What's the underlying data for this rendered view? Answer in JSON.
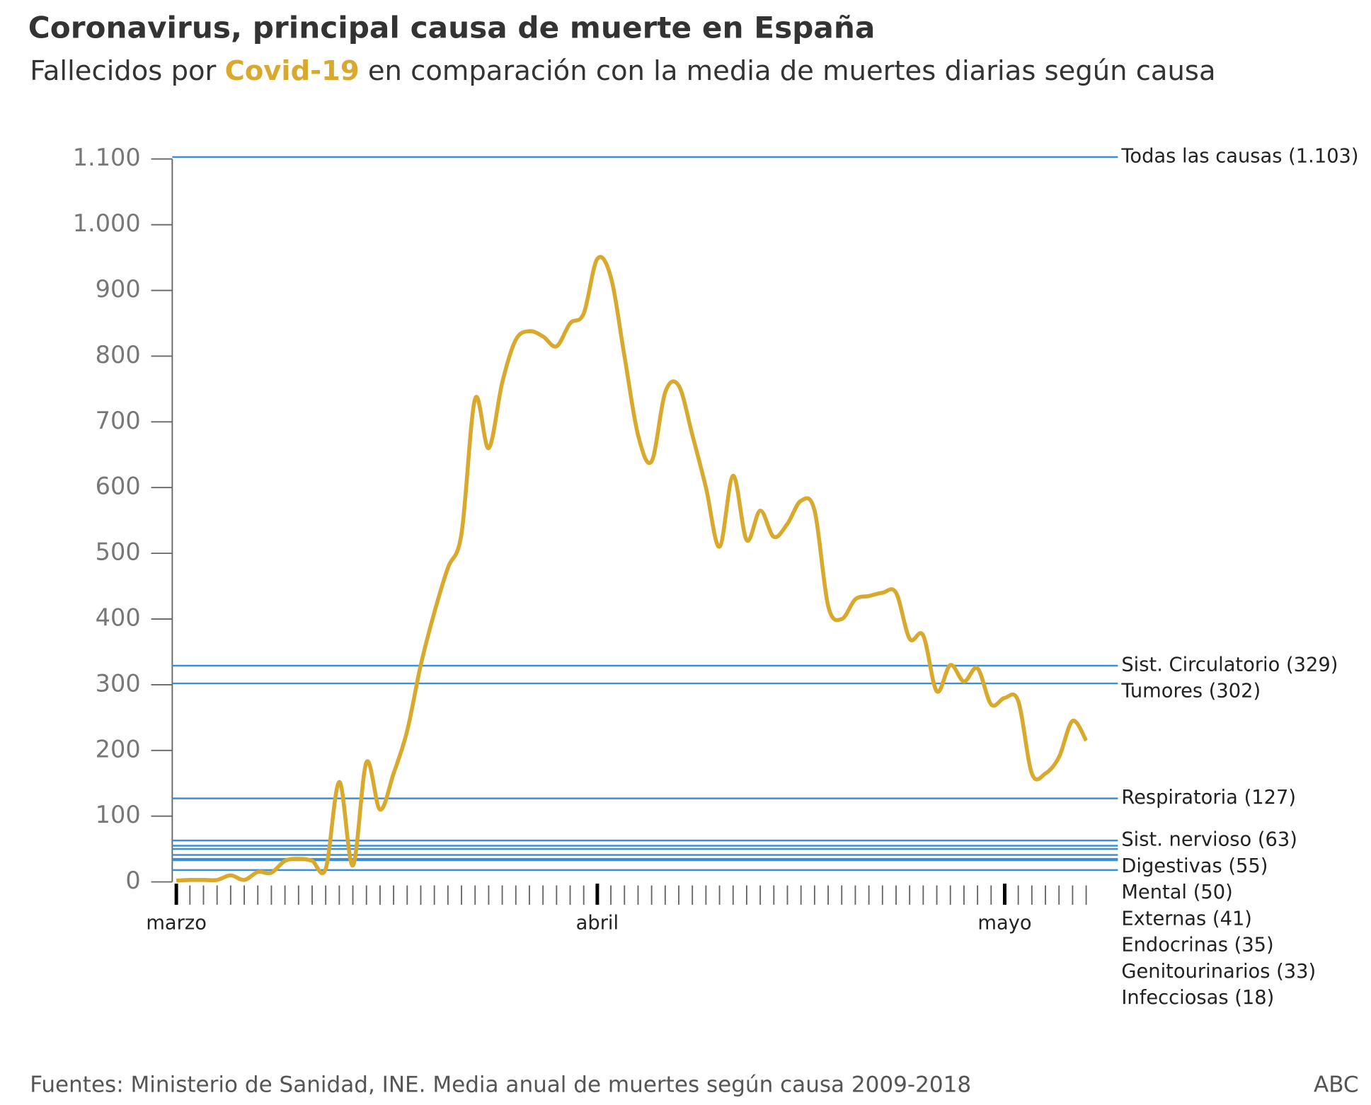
{
  "chart_data": {
    "type": "line",
    "title": "Coronavirus, principal causa de muerte en España",
    "subtitle": {
      "before": "Fallecidos por",
      "highlight": "Covid-19",
      "after": "en comparación con la media de muertes diarias según causa"
    },
    "source": "Fuentes: Ministerio de Sanidad, INE. Media anual de muertes según causa 2009-2018",
    "credit": "ABC",
    "x": [
      0,
      1,
      2,
      3,
      4,
      5,
      6,
      7,
      8,
      9,
      10,
      11,
      12,
      13,
      14,
      15,
      16,
      17,
      18,
      19,
      20,
      21,
      22,
      23,
      24,
      25,
      26,
      27,
      28,
      29,
      30,
      31,
      32,
      33,
      34,
      35,
      36,
      37,
      38,
      39,
      40,
      41,
      42,
      43,
      44,
      45,
      46,
      47,
      48,
      49,
      50,
      51,
      52,
      53,
      54,
      55,
      56,
      57,
      58,
      59,
      60,
      61,
      62,
      63,
      64,
      65,
      66,
      67
    ],
    "series": [
      {
        "name": "Covid-19",
        "color": "#d9a92e",
        "values": [
          2,
          3,
          3,
          3,
          10,
          3,
          15,
          14,
          32,
          35,
          32,
          20,
          152,
          25,
          182,
          110,
          165,
          230,
          330,
          410,
          478,
          530,
          735,
          660,
          760,
          825,
          838,
          830,
          815,
          850,
          865,
          948,
          920,
          800,
          680,
          640,
          745,
          755,
          680,
          600,
          510,
          618,
          520,
          565,
          525,
          545,
          580,
          565,
          420,
          400,
          430,
          435,
          440,
          440,
          370,
          375,
          290,
          330,
          305,
          325,
          270,
          280,
          275,
          165,
          165,
          190,
          245,
          215
        ]
      }
    ],
    "reference_lines": [
      {
        "label": "Todas las causas (1.103)",
        "value": 1103
      },
      {
        "label": "Sist. Circulatorio (329)",
        "value": 329
      },
      {
        "label": "Tumores (302)",
        "value": 302
      },
      {
        "label": "Respiratoria (127)",
        "value": 127
      },
      {
        "label": "Sist. nervioso (63)",
        "value": 63
      },
      {
        "label": "Digestivas (55)",
        "value": 55
      },
      {
        "label": "Mental (50)",
        "value": 50
      },
      {
        "label": "Externas (41)",
        "value": 41
      },
      {
        "label": "Endocrinas (35)",
        "value": 35
      },
      {
        "label": "Genitourinarios (33)",
        "value": 33
      },
      {
        "label": "Infecciosas (18)",
        "value": 18
      }
    ],
    "reference_color": "#3b8fd8",
    "xlim": [
      -0.3,
      68.3
    ],
    "xticks": [
      {
        "value": 0,
        "label": "marzo"
      },
      {
        "value": 31,
        "label": "abril"
      },
      {
        "value": 61,
        "label": "mayo"
      }
    ],
    "ylim": [
      0,
      1100
    ],
    "yticks": [
      0,
      100,
      200,
      300,
      400,
      500,
      600,
      700,
      800,
      900,
      1000,
      {
        "value": 1100,
        "label": "1.100"
      },
      {
        "value": 1000,
        "label": "1.000"
      }
    ]
  }
}
